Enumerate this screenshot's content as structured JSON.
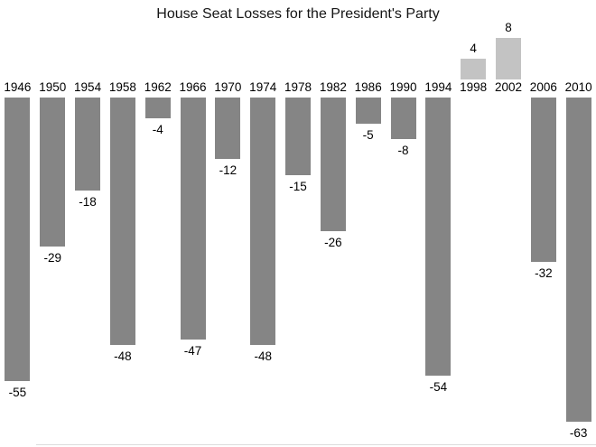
{
  "chart_data": {
    "type": "bar",
    "title": "House Seat Losses for the President's Party",
    "categories": [
      "1946",
      "1950",
      "1954",
      "1958",
      "1962",
      "1966",
      "1970",
      "1974",
      "1978",
      "1982",
      "1986",
      "1990",
      "1994",
      "1998",
      "2002",
      "2006",
      "2010"
    ],
    "values": [
      -55,
      -29,
      -18,
      -48,
      -4,
      -47,
      -12,
      -48,
      -15,
      -26,
      -5,
      -8,
      -54,
      4,
      8,
      -32,
      -63
    ],
    "xlabel": "",
    "ylabel": "",
    "ylim": [
      -63,
      8
    ],
    "grid": false,
    "legend": false,
    "data_labels": true,
    "category_label_position": "zero-baseline",
    "bar_color_negative": "#858585",
    "bar_color_positive": "#c3c3c3",
    "label_color": "#000000",
    "title_color": "#151515",
    "background_color": "#ffffff"
  }
}
